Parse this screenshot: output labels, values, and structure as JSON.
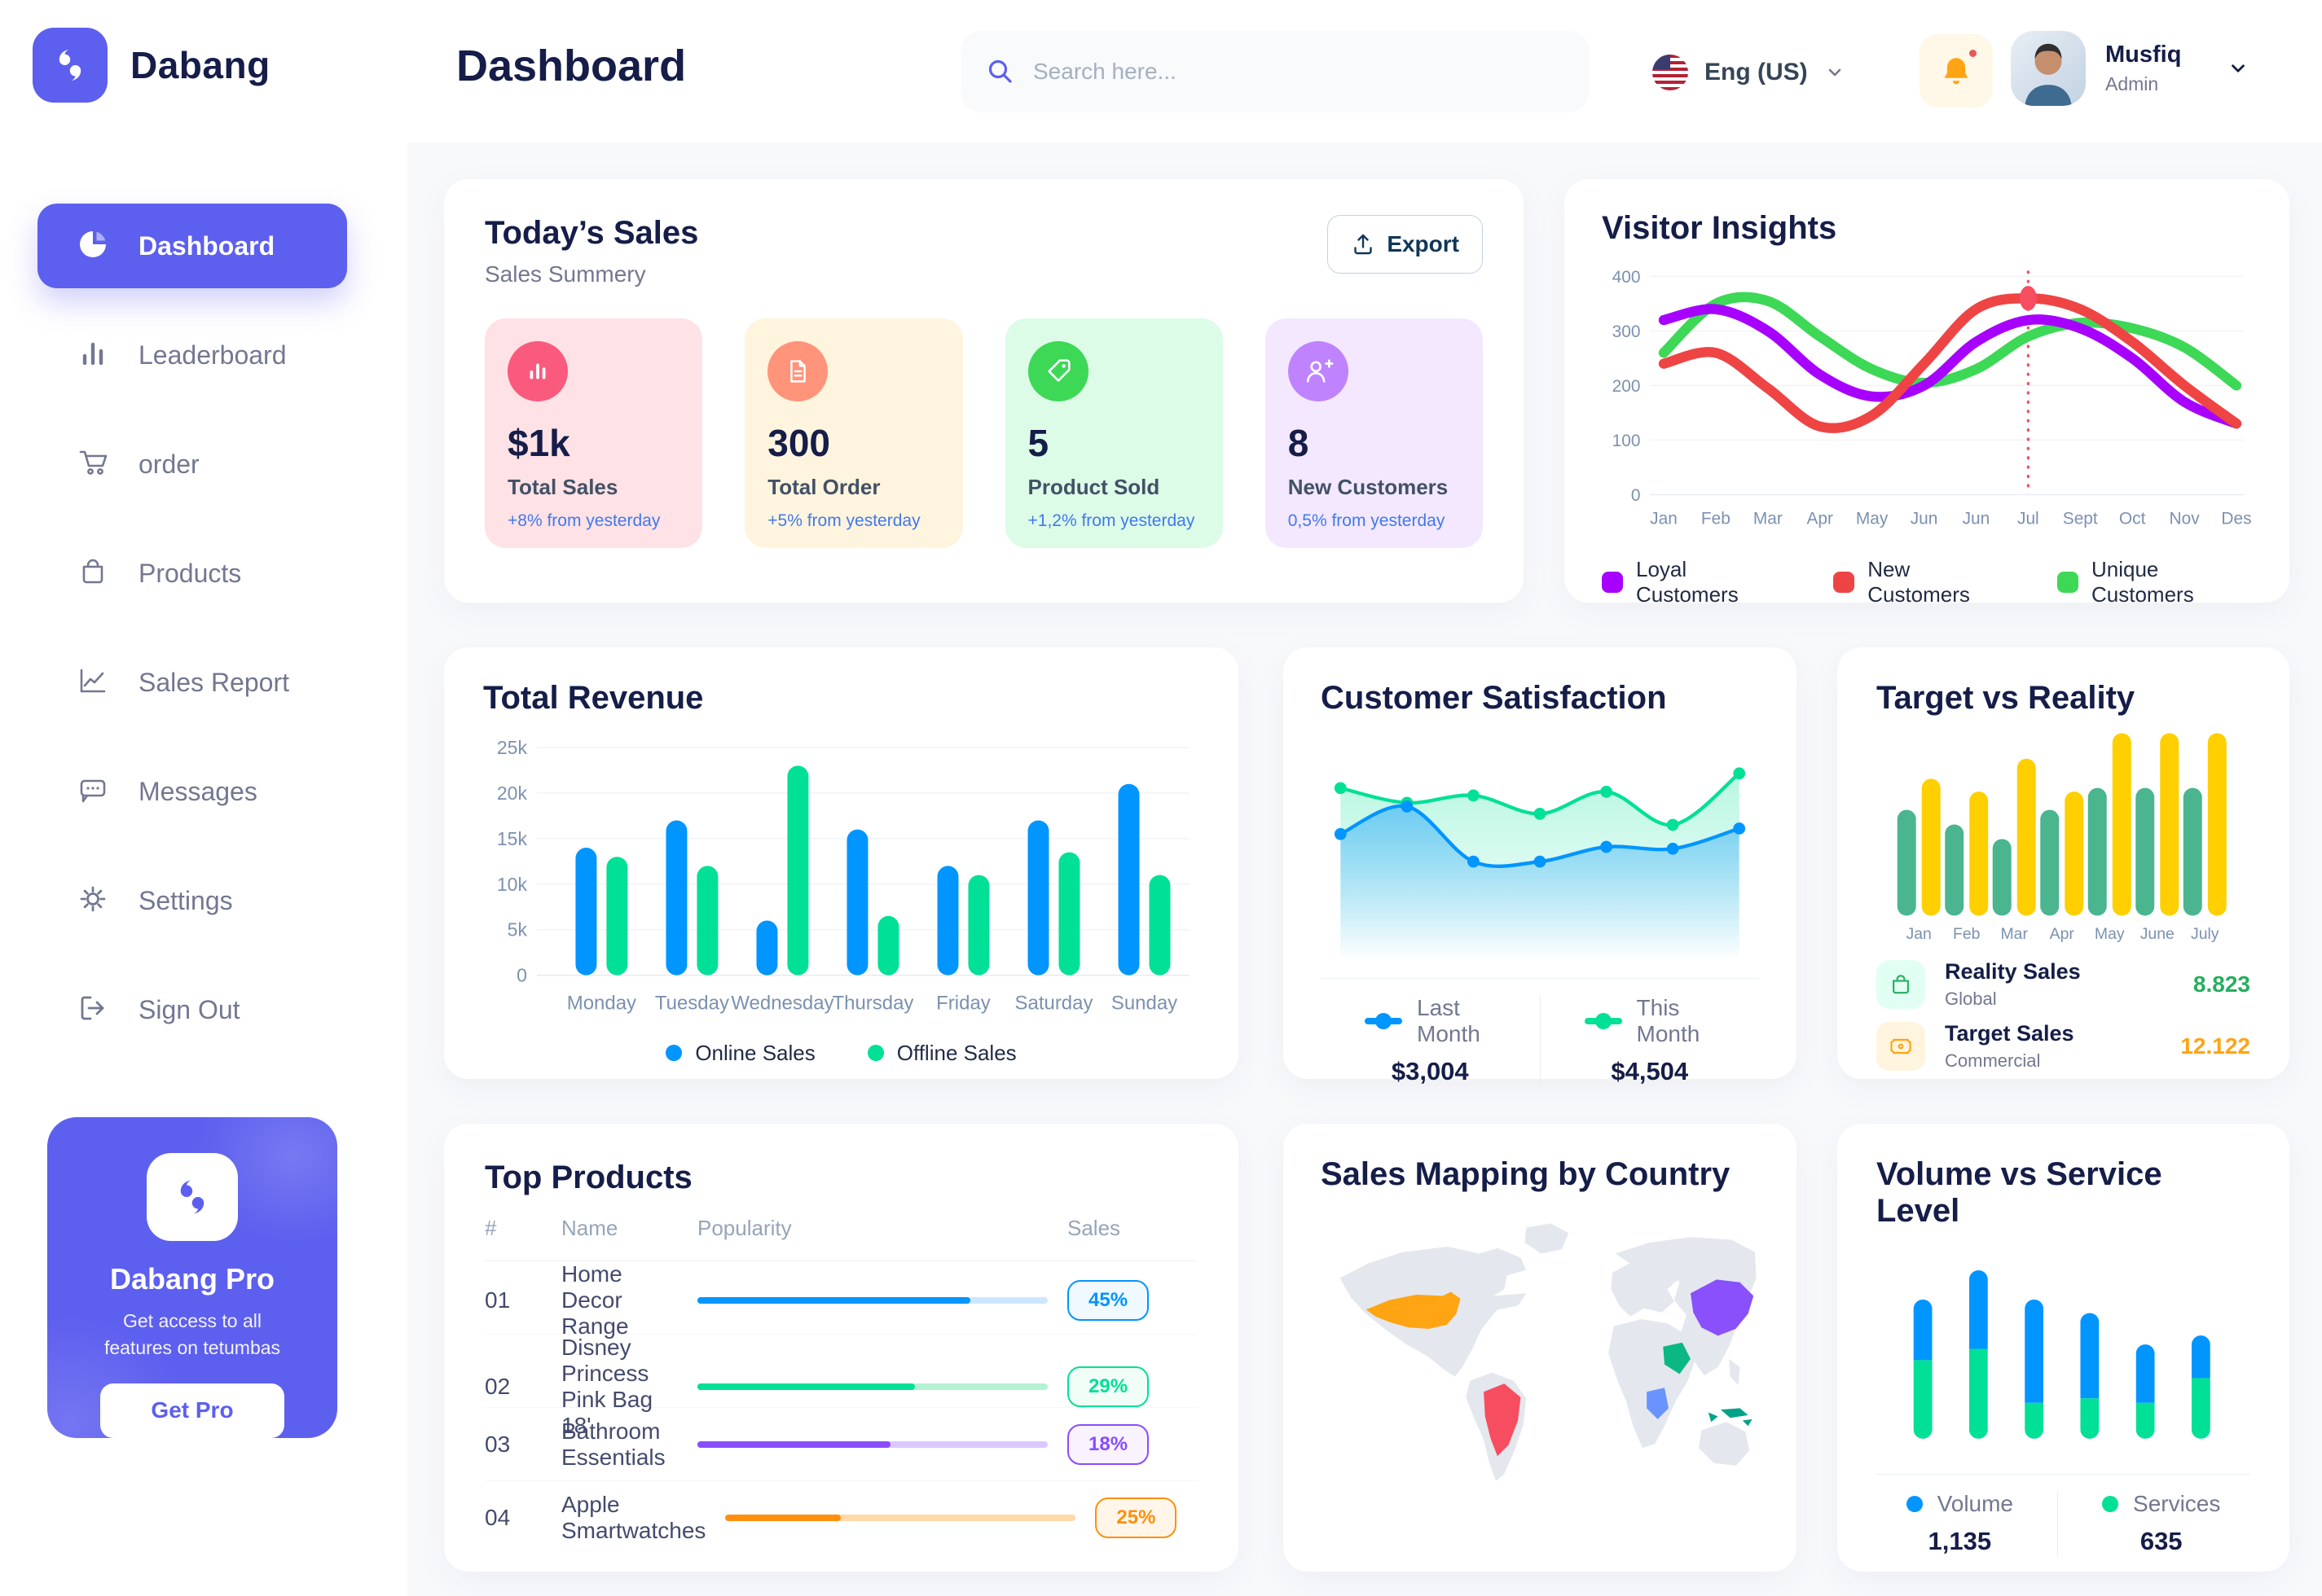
{
  "brand": {
    "name": "Dabang"
  },
  "header": {
    "title": "Dashboard",
    "search_placeholder": "Search here...",
    "language": "Eng (US)",
    "user": {
      "name": "Musfiq",
      "role": "Admin"
    },
    "icons": [
      "search-icon",
      "us-flag-icon",
      "chevron-down-icon",
      "bell-icon",
      "avatar"
    ]
  },
  "sidebar": {
    "items": [
      {
        "id": "dashboard",
        "label": "Dashboard",
        "icon": "pie-chart",
        "active": true
      },
      {
        "id": "leaderboard",
        "label": "Leaderboard",
        "icon": "bar-chart",
        "active": false
      },
      {
        "id": "order",
        "label": "order",
        "icon": "cart",
        "active": false
      },
      {
        "id": "products",
        "label": "Products",
        "icon": "bag",
        "active": false
      },
      {
        "id": "sales-report",
        "label": "Sales Report",
        "icon": "line-chart",
        "active": false
      },
      {
        "id": "messages",
        "label": "Messages",
        "icon": "chat",
        "active": false
      },
      {
        "id": "settings",
        "label": "Settings",
        "icon": "gear",
        "active": false
      },
      {
        "id": "sign-out",
        "label": "Sign Out",
        "icon": "sign-out",
        "active": false
      }
    ],
    "promo": {
      "title": "Dabang Pro",
      "subtitle": "Get access to all features on tetumbas",
      "cta": "Get Pro"
    }
  },
  "today_sales": {
    "title": "Today’s Sales",
    "subtitle": "Sales Summery",
    "export_label": "Export",
    "delta_color": "#4079ED",
    "cards": [
      {
        "id": "total-sales",
        "value": "$1k",
        "label": "Total Sales",
        "delta": "+8% from yesterday",
        "bg": "#FFE2E5",
        "icon_bg": "#FA5A7D",
        "icon": "stat-chart"
      },
      {
        "id": "total-order",
        "value": "300",
        "label": "Total Order",
        "delta": "+5% from yesterday",
        "bg": "#FFF4DE",
        "icon_bg": "#FF947A",
        "icon": "stat-doc"
      },
      {
        "id": "product-sold",
        "value": "5",
        "label": "Product Sold",
        "delta": "+1,2% from yesterday",
        "bg": "#DCFCE7",
        "icon_bg": "#3CD856",
        "icon": "stat-tag"
      },
      {
        "id": "new-customers",
        "value": "8",
        "label": "New Customers",
        "delta": "0,5% from yesterday",
        "bg": "#F3E8FF",
        "icon_bg": "#BF83FF",
        "icon": "stat-user"
      }
    ]
  },
  "charts": {
    "visitor_insights": {
      "type": "line",
      "title": "Visitor Insights",
      "months": [
        "Jan",
        "Feb",
        "Mar",
        "Apr",
        "May",
        "Jun",
        "Jun",
        "Jul",
        "Sept",
        "Oct",
        "Nov",
        "Des"
      ],
      "yticks": [
        0,
        100,
        200,
        300,
        400
      ],
      "ymax": 400,
      "series": [
        {
          "id": "unique",
          "label": "Unique Customers",
          "color": "#3CD856",
          "values": [
            260,
            350,
            355,
            290,
            230,
            205,
            230,
            290,
            315,
            305,
            270,
            200
          ]
        },
        {
          "id": "loyal",
          "label": "Loyal Customers",
          "color": "#A700FF",
          "values": [
            320,
            340,
            300,
            220,
            180,
            200,
            280,
            320,
            305,
            250,
            170,
            130
          ]
        },
        {
          "id": "new",
          "label": "New Customers",
          "color": "#EF4444",
          "values": [
            240,
            260,
            195,
            125,
            145,
            240,
            340,
            360,
            340,
            280,
            200,
            130
          ]
        }
      ],
      "legend_order": [
        "loyal",
        "new",
        "unique"
      ],
      "highlight": {
        "month_index": 7,
        "series": "new",
        "value": 360,
        "color": "#F64E60"
      }
    },
    "total_revenue": {
      "type": "bar",
      "title": "Total Revenue",
      "days": [
        "Monday",
        "Tuesday",
        "Wednesday",
        "Thursday",
        "Friday",
        "Saturday",
        "Sunday"
      ],
      "yticks": [
        "0",
        "5k",
        "10k",
        "15k",
        "20k",
        "25k"
      ],
      "ymax_k": 25,
      "series": [
        {
          "id": "online",
          "label": "Online Sales",
          "color": "#0095FF",
          "values_k": [
            14,
            17,
            6,
            16,
            12,
            17,
            21
          ]
        },
        {
          "id": "offline",
          "label": "Offline Sales",
          "color": "#00E096",
          "values_k": [
            13,
            12,
            23,
            6.5,
            11,
            13.5,
            11
          ]
        }
      ]
    },
    "customer_satisfaction": {
      "type": "area",
      "title": "Customer Satisfaction",
      "series": [
        {
          "id": "last-month",
          "label": "Last Month",
          "total": "$3,004",
          "color": "#0095FF",
          "values": [
            55,
            70,
            40,
            40,
            48,
            47,
            58
          ]
        },
        {
          "id": "this-month",
          "label": "This Month",
          "total": "$4,504",
          "color": "#00E096",
          "values": [
            80,
            72,
            76,
            66,
            78,
            60,
            88
          ]
        }
      ]
    },
    "target_vs_reality": {
      "type": "bar",
      "title": "Target vs Reality",
      "months": [
        "Jan",
        "Feb",
        "Mar",
        "Apr",
        "May",
        "June",
        "July"
      ],
      "series": [
        {
          "id": "reality",
          "label": "Reality Sales",
          "sub": "Global",
          "color": "#4AB58E",
          "value": "8.823",
          "value_color": "#27AE60",
          "tile_bg": "#E2FFF3",
          "icon": "bag-mini",
          "values": [
            58,
            50,
            42,
            58,
            70,
            70,
            70
          ]
        },
        {
          "id": "target",
          "label": "Target Sales",
          "sub": "Commercial",
          "color": "#FFCF00",
          "value": "12.122",
          "value_color": "#FFA412",
          "tile_bg": "#FFF4DE",
          "icon": "ticket-mini",
          "values": [
            75,
            68,
            86,
            68,
            100,
            100,
            100
          ]
        }
      ]
    },
    "volume_vs_service": {
      "type": "stacked-bar",
      "title": "Volume vs Service Level",
      "series": [
        {
          "id": "volume",
          "label": "Volume",
          "total": "1,135",
          "color": "#0095FF",
          "values": [
            27,
            35,
            46,
            38,
            26,
            19
          ]
        },
        {
          "id": "services",
          "label": "Services",
          "total": "635",
          "color": "#00E096",
          "values": [
            35,
            40,
            16,
            18,
            16,
            27
          ]
        }
      ]
    }
  },
  "top_products": {
    "title": "Top Products",
    "columns": [
      "#",
      "Name",
      "Popularity",
      "Sales"
    ],
    "rows": [
      {
        "num": "01",
        "name": "Home Decor Range",
        "popularity": 78,
        "sales": "45%",
        "color": "#0095FF",
        "track": "#CDE7FF",
        "badge_bg": "#F0F9FF"
      },
      {
        "num": "02",
        "name": "Disney Princess Pink Bag 18'",
        "popularity": 62,
        "sales": "29%",
        "color": "#00E096",
        "track": "#B3F2D3",
        "badge_bg": "#F1FEF7"
      },
      {
        "num": "03",
        "name": "Bathroom Essentials",
        "popularity": 55,
        "sales": "18%",
        "color": "#884DFF",
        "track": "#DCC8FF",
        "badge_bg": "#F9F3FF"
      },
      {
        "num": "04",
        "name": "Apple Smartwatches",
        "popularity": 33,
        "sales": "25%",
        "color": "#FF8F0D",
        "track": "#FFD9A6",
        "badge_bg": "#FFF6E9"
      }
    ]
  },
  "sales_mapping": {
    "title": "Sales Mapping by Country",
    "countries": [
      {
        "id": "usa",
        "name": "United States",
        "color": "#FFA412"
      },
      {
        "id": "brazil",
        "name": "Brazil",
        "color": "#F64E60"
      },
      {
        "id": "china",
        "name": "China",
        "color": "#8950FC"
      },
      {
        "id": "saudi_arabia",
        "name": "Saudi Arabia",
        "color": "#0BB783"
      },
      {
        "id": "dr_congo",
        "name": "DR Congo",
        "color": "#6993FF"
      },
      {
        "id": "indonesia",
        "name": "Indonesia",
        "color": "#00A389"
      }
    ]
  }
}
